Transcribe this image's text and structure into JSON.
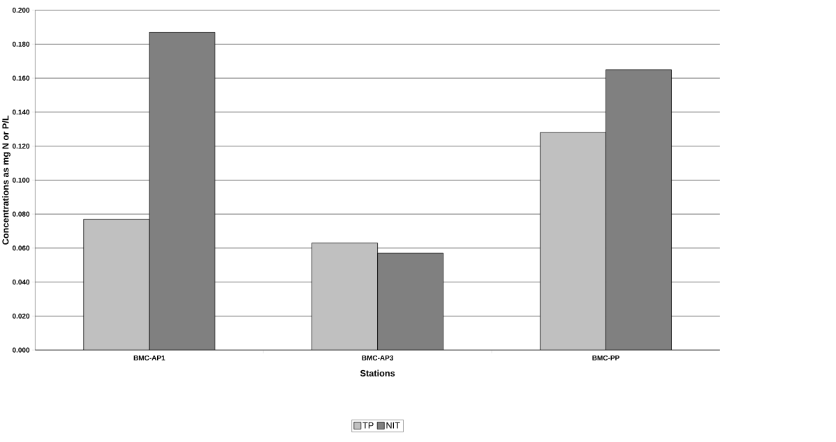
{
  "chart_data": {
    "type": "bar",
    "xlabel": "Stations",
    "ylabel": "Concentrations as mg N or P/L",
    "categories": [
      "BMC-AP1",
      "BMC-AP3",
      "BMC-PP"
    ],
    "series": [
      {
        "name": "TP",
        "color": "#c0c0c0",
        "values": [
          0.077,
          0.063,
          0.128
        ]
      },
      {
        "name": "NIT",
        "color": "#808080",
        "values": [
          0.187,
          0.057,
          0.165
        ]
      }
    ],
    "ylim": [
      0,
      0.2
    ],
    "yticks": [
      {
        "value": 0,
        "label": "0.000"
      },
      {
        "value": 0.02,
        "label": "0.020"
      },
      {
        "value": 0.04,
        "label": "0.040"
      },
      {
        "value": 0.06,
        "label": "0.060"
      },
      {
        "value": 0.08,
        "label": "0.080"
      },
      {
        "value": 0.1,
        "label": "0.100"
      },
      {
        "value": 0.12,
        "label": "0.120"
      },
      {
        "value": 0.14,
        "label": "0.140"
      },
      {
        "value": 0.16,
        "label": "0.160"
      },
      {
        "value": 0.18,
        "label": "0.180"
      },
      {
        "value": 0.2,
        "label": "0.200"
      }
    ],
    "grid": "y",
    "legend": "bottom"
  }
}
